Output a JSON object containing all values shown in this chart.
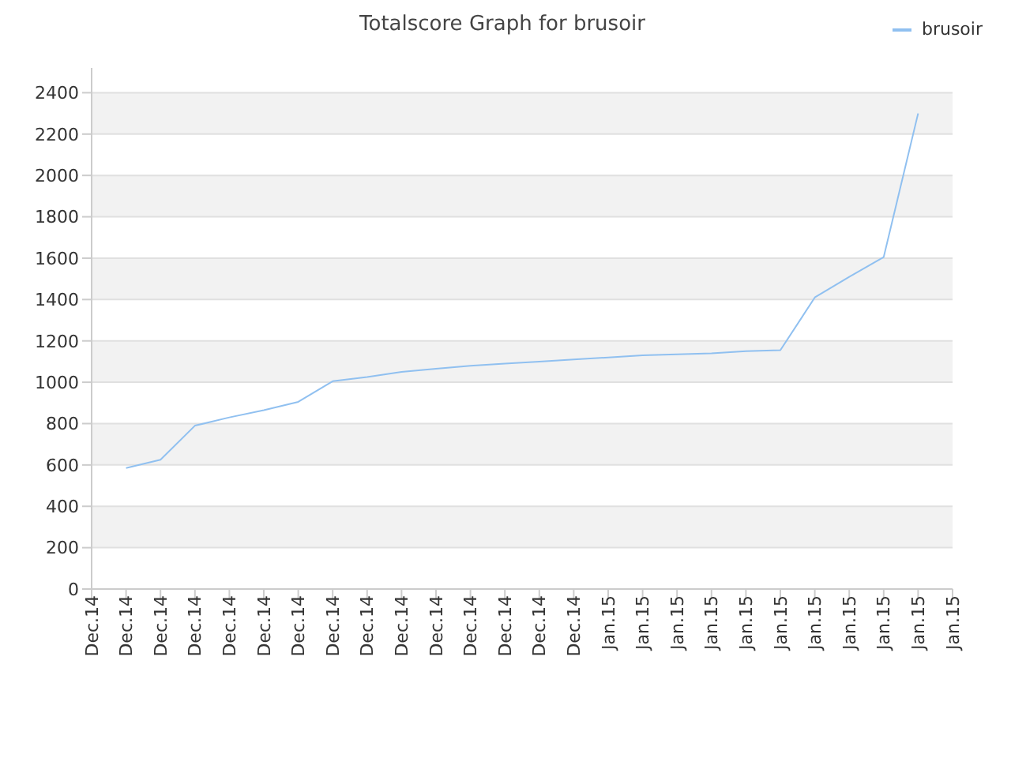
{
  "chart_data": {
    "type": "line",
    "title": "Totalscore Graph for brusoir",
    "categories": [
      "Dec.14",
      "Dec.14",
      "Dec.14",
      "Dec.14",
      "Dec.14",
      "Dec.14",
      "Dec.14",
      "Dec.14",
      "Dec.14",
      "Dec.14",
      "Dec.14",
      "Dec.14",
      "Dec.14",
      "Dec.14",
      "Dec.14",
      "Jan.15",
      "Jan.15",
      "Jan.15",
      "Jan.15",
      "Jan.15",
      "Jan.15",
      "Jan.15",
      "Jan.15",
      "Jan.15",
      "Jan.15",
      "Jan.15"
    ],
    "series": [
      {
        "name": "brusoir",
        "color": "#90c0f0",
        "values": [
          null,
          585,
          625,
          790,
          830,
          865,
          905,
          1005,
          1025,
          1050,
          1065,
          1080,
          1090,
          1100,
          1110,
          1120,
          1130,
          1135,
          1140,
          1150,
          1155,
          1410,
          1510,
          1605,
          2300,
          null
        ]
      }
    ],
    "ylim": [
      0,
      2520
    ],
    "yticks": [
      0,
      200,
      400,
      600,
      800,
      1000,
      1200,
      1400,
      1600,
      1800,
      2000,
      2200,
      2400
    ],
    "grid": "y",
    "legend": "top right",
    "marker": "none",
    "line_style": "solid"
  }
}
